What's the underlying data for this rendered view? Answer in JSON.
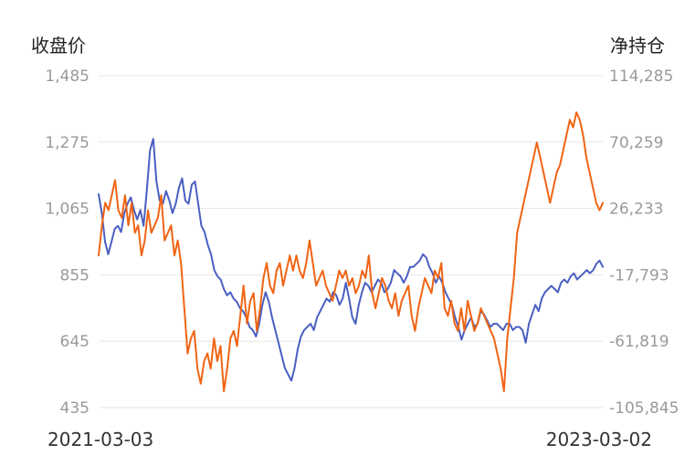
{
  "chart_data": {
    "type": "line",
    "left_axis": {
      "label": "收盘价",
      "ticks": [
        "1,485",
        "1,275",
        "1,065",
        "855",
        "645",
        "435"
      ],
      "range": [
        435,
        1485
      ]
    },
    "right_axis": {
      "label": "净持仓",
      "ticks": [
        "114,285",
        "70,259",
        "26,233",
        "-17,793",
        "-61,819",
        "-105,845"
      ],
      "range": [
        -105845,
        114285
      ]
    },
    "x_start_label": "2021-03-03",
    "x_end_label": "2023-03-02",
    "grid": true,
    "series": [
      {
        "axis": "left",
        "color": "#4a5fc1",
        "values": [
          1110,
          1050,
          960,
          920,
          960,
          1000,
          1010,
          990,
          1050,
          1080,
          1100,
          1060,
          1030,
          1060,
          1010,
          1120,
          1250,
          1285,
          1150,
          1090,
          1080,
          1120,
          1090,
          1050,
          1080,
          1130,
          1160,
          1090,
          1080,
          1140,
          1150,
          1080,
          1010,
          990,
          950,
          920,
          870,
          850,
          840,
          810,
          790,
          800,
          780,
          770,
          750,
          740,
          720,
          690,
          680,
          660,
          700,
          760,
          800,
          770,
          720,
          680,
          640,
          600,
          560,
          540,
          520,
          560,
          620,
          660,
          680,
          690,
          700,
          680,
          720,
          740,
          760,
          780,
          770,
          800,
          790,
          760,
          780,
          830,
          780,
          720,
          700,
          760,
          800,
          830,
          820,
          800,
          820,
          840,
          830,
          800,
          810,
          830,
          870,
          860,
          850,
          830,
          850,
          880,
          880,
          890,
          900,
          920,
          910,
          880,
          860,
          830,
          850,
          830,
          800,
          780,
          760,
          720,
          690,
          650,
          680,
          700,
          720,
          690,
          700,
          740,
          730,
          710,
          690,
          700,
          700,
          690,
          680,
          700,
          700,
          680,
          690,
          690,
          680,
          640,
          700,
          730,
          760,
          740,
          780,
          800,
          810,
          820,
          810,
          800,
          830,
          840,
          830,
          850,
          860,
          840,
          850,
          860,
          870,
          860,
          870,
          890,
          900,
          880
        ]
      },
      {
        "axis": "right",
        "color": "#f06414",
        "values": [
          -5000,
          15000,
          30000,
          25000,
          35000,
          45000,
          25000,
          20000,
          35000,
          15000,
          30000,
          10000,
          15000,
          -5000,
          5000,
          25000,
          10000,
          15000,
          20000,
          35000,
          5000,
          10000,
          15000,
          -5000,
          5000,
          -10000,
          -40000,
          -70000,
          -60000,
          -55000,
          -80000,
          -90000,
          -75000,
          -70000,
          -80000,
          -60000,
          -75000,
          -65000,
          -95000,
          -80000,
          -60000,
          -55000,
          -65000,
          -45000,
          -25000,
          -50000,
          -35000,
          -30000,
          -55000,
          -40000,
          -20000,
          -10000,
          -25000,
          -30000,
          -15000,
          -10000,
          -25000,
          -15000,
          -5000,
          -15000,
          -5000,
          -15000,
          -20000,
          -10000,
          5000,
          -10000,
          -25000,
          -20000,
          -15000,
          -25000,
          -30000,
          -35000,
          -25000,
          -15000,
          -20000,
          -15000,
          -25000,
          -20000,
          -30000,
          -25000,
          -15000,
          -20000,
          -5000,
          -30000,
          -40000,
          -30000,
          -20000,
          -25000,
          -35000,
          -40000,
          -30000,
          -45000,
          -35000,
          -30000,
          -25000,
          -45000,
          -55000,
          -40000,
          -30000,
          -20000,
          -25000,
          -30000,
          -15000,
          -20000,
          -10000,
          -40000,
          -45000,
          -35000,
          -50000,
          -55000,
          -40000,
          -55000,
          -35000,
          -45000,
          -55000,
          -50000,
          -40000,
          -45000,
          -50000,
          -55000,
          -60000,
          -70000,
          -80000,
          -95000,
          -60000,
          -40000,
          -20000,
          10000,
          20000,
          30000,
          40000,
          50000,
          60000,
          70000,
          60000,
          50000,
          40000,
          30000,
          40000,
          50000,
          55000,
          65000,
          75000,
          85000,
          80000,
          90000,
          85000,
          75000,
          60000,
          50000,
          40000,
          30000,
          25000,
          30000
        ]
      }
    ]
  }
}
